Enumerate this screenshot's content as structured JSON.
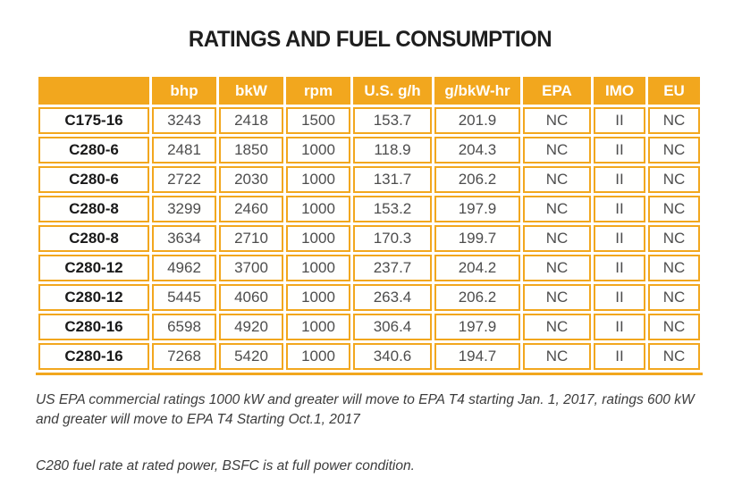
{
  "title": "RATINGS AND FUEL CONSUMPTION",
  "table": {
    "columns": [
      "",
      "bhp",
      "bkW",
      "rpm",
      "U.S. g/h",
      "g/bkW-hr",
      "EPA",
      "IMO",
      "EU"
    ],
    "rows": [
      [
        "C175-16",
        "3243",
        "2418",
        "1500",
        "153.7",
        "201.9",
        "NC",
        "II",
        "NC"
      ],
      [
        "C280-6",
        "2481",
        "1850",
        "1000",
        "118.9",
        "204.3",
        "NC",
        "II",
        "NC"
      ],
      [
        "C280-6",
        "2722",
        "2030",
        "1000",
        "131.7",
        "206.2",
        "NC",
        "II",
        "NC"
      ],
      [
        "C280-8",
        "3299",
        "2460",
        "1000",
        "153.2",
        "197.9",
        "NC",
        "II",
        "NC"
      ],
      [
        "C280-8",
        "3634",
        "2710",
        "1000",
        "170.3",
        "199.7",
        "NC",
        "II",
        "NC"
      ],
      [
        "C280-12",
        "4962",
        "3700",
        "1000",
        "237.7",
        "204.2",
        "NC",
        "II",
        "NC"
      ],
      [
        "C280-12",
        "5445",
        "4060",
        "1000",
        "263.4",
        "206.2",
        "NC",
        "II",
        "NC"
      ],
      [
        "C280-16",
        "6598",
        "4920",
        "1000",
        "306.4",
        "197.9",
        "NC",
        "II",
        "NC"
      ],
      [
        "C280-16",
        "7268",
        "5420",
        "1000",
        "340.6",
        "194.7",
        "NC",
        "II",
        "NC"
      ]
    ]
  },
  "footnotes": [
    "US EPA commercial ratings 1000 kW and greater will move to EPA T4 starting Jan. 1, 2017, ratings 600 kW and greater will move to EPA T4 Starting Oct.1, 2017",
    "C280 fuel rate at rated power, BSFC is at full power condition."
  ],
  "colors": {
    "accent": "#F2A71E",
    "header_text": "#FFFFFF",
    "cell_text": "#4D4D4D",
    "model_text": "#191919",
    "title_text": "#1E1E1E"
  }
}
